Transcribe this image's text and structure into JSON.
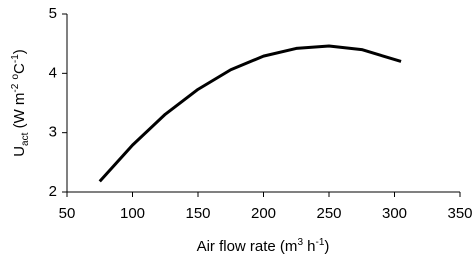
{
  "chart_data": {
    "type": "line",
    "xlabel": [
      {
        "text": "Air flow rate (m"
      },
      {
        "text": "3",
        "shift": "sup"
      },
      {
        "text": " h"
      },
      {
        "text": "-1",
        "shift": "sup"
      },
      {
        "text": ")"
      }
    ],
    "ylabel": [
      {
        "text": "U"
      },
      {
        "text": "act",
        "shift": "sub"
      },
      {
        "text": " (W m"
      },
      {
        "text": "-2",
        "shift": "sup"
      },
      {
        "text": " "
      },
      {
        "text": "o",
        "shift": "sup"
      },
      {
        "text": "C"
      },
      {
        "text": "-1",
        "shift": "sup"
      },
      {
        "text": ")"
      }
    ],
    "x": [
      75,
      100,
      125,
      150,
      175,
      200,
      225,
      250,
      275,
      305
    ],
    "series": [
      {
        "color": "#000000",
        "values": [
          2.18,
          2.79,
          3.31,
          3.73,
          4.06,
          4.29,
          4.42,
          4.46,
          4.4,
          4.2
        ]
      }
    ],
    "xlim": [
      50,
      350
    ],
    "xticks": [
      50,
      100,
      150,
      200,
      250,
      300,
      350
    ],
    "ylim": [
      2,
      5
    ],
    "yticks": [
      2,
      3,
      4,
      5
    ]
  }
}
